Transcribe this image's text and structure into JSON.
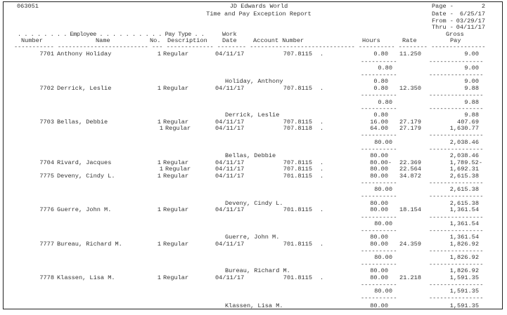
{
  "header": {
    "report_id": "063051",
    "company": "JD Edwards World",
    "title": "Time and Pay Exception Report",
    "page_label": "Page -",
    "page": "2",
    "date_label": "Date -",
    "date": "6/25/17",
    "from_label": "From -",
    "from": "03/29/17",
    "thru_label": "Thru -",
    "thru": "04/11/17"
  },
  "columns": {
    "group_line": ". . . . . . . . Employee . . . . . . . . . . Pay Type . .",
    "work": "Work",
    "gross": "Gross",
    "number": "Number",
    "name": "Name",
    "no": "No.",
    "description": "Description",
    "date": "Date",
    "account": "Account Number",
    "hours": "Hours",
    "rate": "Rate",
    "pay": "Pay",
    "underline": "----------- ------------------------- --- ------------- -------- ----------------------------- ---------- -------- ---------------"
  },
  "rules": {
    "hours": "----------",
    "gross": "---------------"
  },
  "body": [
    {
      "type": "detail",
      "number": "7701",
      "name": "Anthony Holiday",
      "pay_no": "1",
      "pay_desc": "Regular",
      "work_date": "04/11/17",
      "account": "707.8115",
      "account_suffix": ".",
      "hours": "0.80",
      "rate": "11.250",
      "gross": "9.00"
    },
    {
      "type": "rule"
    },
    {
      "type": "total",
      "hours": "0.80",
      "gross": "9.00"
    },
    {
      "type": "rule"
    },
    {
      "type": "carry",
      "name": "Holiday, Anthony",
      "hours": "0.80",
      "gross": "9.00"
    },
    {
      "type": "detail",
      "number": "7702",
      "name": "Derrick, Leslie",
      "pay_no": "1",
      "pay_desc": "Regular",
      "work_date": "04/11/17",
      "account": "707.8115",
      "account_suffix": ".",
      "hours": "0.80",
      "rate": "12.350",
      "gross": "9.88"
    },
    {
      "type": "rule"
    },
    {
      "type": "total",
      "hours": "0.80",
      "gross": "9.88"
    },
    {
      "type": "rule"
    },
    {
      "type": "carry",
      "name": "Derrick, Leslie",
      "hours": "0.80",
      "gross": "9.88"
    },
    {
      "type": "detail",
      "number": "7703",
      "name": "Bellas, Debbie",
      "pay_no": "1",
      "pay_desc": "Regular",
      "work_date": "04/11/17",
      "account": "707.8115",
      "account_suffix": ".",
      "hours": "16.00",
      "rate": "27.179",
      "gross": "407.69"
    },
    {
      "type": "detail",
      "cont": true,
      "pay_no": "1",
      "pay_desc": "Regular",
      "work_date": "04/11/17",
      "account": "707.8118",
      "account_suffix": ".",
      "hours": "64.00",
      "rate": "27.179",
      "gross": "1,630.77"
    },
    {
      "type": "rule"
    },
    {
      "type": "total",
      "hours": "80.00",
      "gross": "2,038.46"
    },
    {
      "type": "rule"
    },
    {
      "type": "carry",
      "name": "Bellas, Debbie",
      "hours": "80.00",
      "gross": "2,038.46"
    },
    {
      "type": "detail",
      "number": "7704",
      "name": "Rivard, Jacques",
      "pay_no": "1",
      "pay_desc": "Regular",
      "work_date": "04/11/17",
      "account": "707.8115",
      "account_suffix": ".",
      "hours": "80.00-",
      "rate": "22.369",
      "gross": "1,789.52-"
    },
    {
      "type": "detail",
      "cont": true,
      "pay_no": "1",
      "pay_desc": "Regular",
      "work_date": "04/11/17",
      "account": "707.8115",
      "account_suffix": ".",
      "hours": "80.00",
      "rate": "22.564",
      "gross": "1,692.31"
    },
    {
      "type": "detail",
      "number": "7775",
      "name": "Deveny, Cindy L.",
      "pay_no": "1",
      "pay_desc": "Regular",
      "work_date": "04/11/17",
      "account": "701.8115",
      "account_suffix": ".",
      "hours": "80.00",
      "rate": "34.872",
      "gross": "2,615.38"
    },
    {
      "type": "rule"
    },
    {
      "type": "total",
      "hours": "80.00",
      "gross": "2,615.38"
    },
    {
      "type": "rule"
    },
    {
      "type": "carry",
      "name": "Deveny, Cindy L.",
      "hours": "80.00",
      "gross": "2,615.38"
    },
    {
      "type": "detail",
      "number": "7776",
      "name": "Guerre, John M.",
      "pay_no": "1",
      "pay_desc": "Regular",
      "work_date": "04/11/17",
      "account": "701.8115",
      "account_suffix": ".",
      "hours": "80.00",
      "rate": "18.154",
      "gross": "1,361.54"
    },
    {
      "type": "rule"
    },
    {
      "type": "total",
      "hours": "80.00",
      "gross": "1,361.54"
    },
    {
      "type": "rule"
    },
    {
      "type": "carry",
      "name": "Guerre, John M.",
      "hours": "80.00",
      "gross": "1,361.54"
    },
    {
      "type": "detail",
      "number": "7777",
      "name": "Bureau, Richard M.",
      "pay_no": "1",
      "pay_desc": "Regular",
      "work_date": "04/11/17",
      "account": "701.8115",
      "account_suffix": ".",
      "hours": "80.00",
      "rate": "24.359",
      "gross": "1,826.92"
    },
    {
      "type": "rule"
    },
    {
      "type": "total",
      "hours": "80.00",
      "gross": "1,826.92"
    },
    {
      "type": "rule"
    },
    {
      "type": "carry",
      "name": "Bureau, Richard M.",
      "hours": "80.00",
      "gross": "1,826.92"
    },
    {
      "type": "detail",
      "number": "7778",
      "name": "Klassen, Lisa M.",
      "pay_no": "1",
      "pay_desc": "Regular",
      "work_date": "04/11/17",
      "account": "701.8115",
      "account_suffix": ".",
      "hours": "80.00",
      "rate": "21.218",
      "gross": "1,591.35"
    },
    {
      "type": "rule"
    },
    {
      "type": "total",
      "hours": "80.00",
      "gross": "1,591.35"
    },
    {
      "type": "rule"
    },
    {
      "type": "carry",
      "name": "Klassen, Lisa M.",
      "hours": "80.00",
      "gross": "1,591.35"
    }
  ]
}
